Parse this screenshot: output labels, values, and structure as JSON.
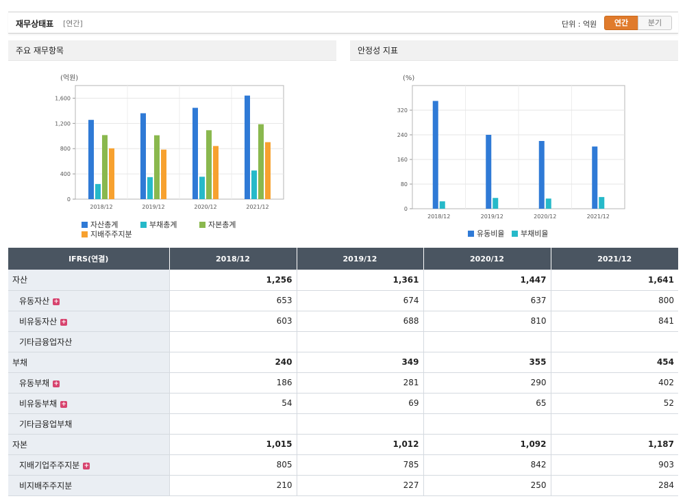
{
  "header": {
    "title": "재무상태표",
    "period": "[연간]",
    "unit_label": "단위 : 억원",
    "toggle_annual": "연간",
    "toggle_quarter": "분기"
  },
  "panels": {
    "left_title": "주요 재무항목",
    "right_title": "안정성 지표"
  },
  "colors": {
    "blue": "#2f7ad6",
    "cyan": "#26b9c9",
    "green": "#8ab84e",
    "orange": "#f7a12f"
  },
  "chart_data": [
    {
      "type": "bar",
      "unit_label": "(억원)",
      "categories": [
        "2018/12",
        "2019/12",
        "2020/12",
        "2021/12"
      ],
      "ylim": [
        0,
        1800
      ],
      "yticks": [
        0,
        400,
        800,
        1200,
        1600
      ],
      "ytick_labels": [
        "0",
        "400",
        "800",
        "1,200",
        "1,600"
      ],
      "grid": true,
      "legend_position": "bottom",
      "series": [
        {
          "name": "자산총계",
          "color": "#2f7ad6",
          "values": [
            1256,
            1361,
            1447,
            1641
          ]
        },
        {
          "name": "부채총계",
          "color": "#26b9c9",
          "values": [
            240,
            349,
            355,
            454
          ]
        },
        {
          "name": "자본총계",
          "color": "#8ab84e",
          "values": [
            1015,
            1012,
            1092,
            1187
          ]
        },
        {
          "name": "지배주주지분",
          "color": "#f7a12f",
          "values": [
            805,
            785,
            842,
            903
          ]
        }
      ]
    },
    {
      "type": "bar",
      "unit_label": "(%)",
      "categories": [
        "2018/12",
        "2019/12",
        "2020/12",
        "2021/12"
      ],
      "ylim": [
        0,
        400
      ],
      "yticks": [
        0,
        80,
        160,
        240,
        320
      ],
      "ytick_labels": [
        "0",
        "80",
        "160",
        "240",
        "320"
      ],
      "grid": true,
      "legend_position": "bottom",
      "series": [
        {
          "name": "유동비율",
          "color": "#2f7ad6",
          "values": [
            350,
            240,
            220,
            202
          ]
        },
        {
          "name": "부채비율",
          "color": "#26b9c9",
          "values": [
            24,
            35,
            33,
            38
          ]
        }
      ]
    }
  ],
  "table": {
    "header": [
      "IFRS(연결)",
      "2018/12",
      "2019/12",
      "2020/12",
      "2021/12"
    ],
    "rows": [
      {
        "label": "자산",
        "level": "major",
        "expand": false,
        "values": [
          "1,256",
          "1,361",
          "1,447",
          "1,641"
        ]
      },
      {
        "label": "유동자산",
        "level": "sub",
        "expand": true,
        "values": [
          "653",
          "674",
          "637",
          "800"
        ]
      },
      {
        "label": "비유동자산",
        "level": "sub",
        "expand": true,
        "values": [
          "603",
          "688",
          "810",
          "841"
        ]
      },
      {
        "label": "기타금융업자산",
        "level": "sub",
        "expand": false,
        "values": [
          "",
          "",
          "",
          ""
        ]
      },
      {
        "label": "부채",
        "level": "major",
        "expand": false,
        "values": [
          "240",
          "349",
          "355",
          "454"
        ]
      },
      {
        "label": "유동부채",
        "level": "sub",
        "expand": true,
        "values": [
          "186",
          "281",
          "290",
          "402"
        ]
      },
      {
        "label": "비유동부채",
        "level": "sub",
        "expand": true,
        "values": [
          "54",
          "69",
          "65",
          "52"
        ]
      },
      {
        "label": "기타금융업부채",
        "level": "sub",
        "expand": false,
        "values": [
          "",
          "",
          "",
          ""
        ]
      },
      {
        "label": "자본",
        "level": "major",
        "expand": false,
        "values": [
          "1,015",
          "1,012",
          "1,092",
          "1,187"
        ]
      },
      {
        "label": "지배기업주주지분",
        "level": "sub",
        "expand": true,
        "values": [
          "805",
          "785",
          "842",
          "903"
        ]
      },
      {
        "label": "비지배주주지분",
        "level": "sub",
        "expand": false,
        "values": [
          "210",
          "227",
          "250",
          "284"
        ]
      }
    ]
  }
}
